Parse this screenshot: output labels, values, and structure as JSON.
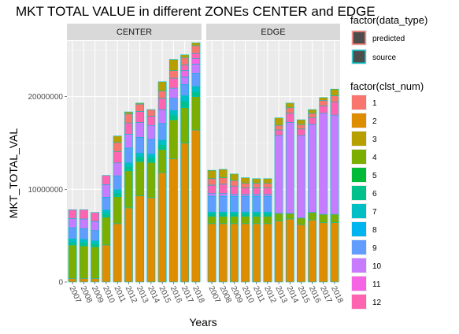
{
  "chart_data": {
    "type": "bar",
    "stacked": true,
    "faceted_by": "zone",
    "title": "MKT TOTAL VALUE in different ZONEs CENTER and EDGE",
    "xlabel": "Years",
    "ylabel": "MKT_TOTAL_VAL",
    "ylim": [
      0,
      26000000
    ],
    "y_ticks": [
      0,
      10000000,
      20000000
    ],
    "y_tick_labels": [
      "0",
      "10000000",
      "20000000"
    ],
    "grid": true,
    "legend_position": "right",
    "categories": [
      "2007",
      "2008",
      "2009",
      "2010",
      "2011",
      "2012",
      "2013",
      "2014",
      "2015",
      "2016",
      "2017",
      "2018"
    ],
    "panels": [
      {
        "name": "CENTER",
        "stacks": [
          [
            400000,
            3600000,
            0,
            300000,
            350000,
            0,
            1200000,
            1000000,
            0,
            950000,
            0,
            0
          ],
          [
            400000,
            3500000,
            0,
            350000,
            350000,
            0,
            1150000,
            1050000,
            0,
            1000000,
            0,
            0
          ],
          [
            400000,
            3400000,
            0,
            350000,
            300000,
            0,
            1100000,
            1000000,
            0,
            950000,
            0,
            0
          ],
          [
            4000000,
            3000000,
            0,
            400000,
            350000,
            0,
            1400000,
            1350000,
            0,
            1000000,
            0,
            0
          ],
          [
            6300000,
            2900000,
            0,
            400000,
            350000,
            0,
            1500000,
            1400000,
            0,
            1200000,
            1000000,
            700000
          ],
          [
            8000000,
            4000000,
            0,
            450000,
            400000,
            0,
            1600000,
            1500000,
            0,
            1200000,
            1000000,
            200000
          ],
          [
            9300000,
            3700000,
            0,
            500000,
            400000,
            0,
            1700000,
            1600000,
            0,
            1200000,
            800000,
            100000
          ],
          [
            9100000,
            3800000,
            0,
            500000,
            400000,
            0,
            1600000,
            1500000,
            0,
            1000000,
            700000,
            0
          ],
          [
            11800000,
            2500000,
            0,
            500000,
            500000,
            0,
            1800000,
            1500000,
            0,
            1200000,
            800000,
            1000000
          ],
          [
            13300000,
            4200000,
            0,
            500000,
            500000,
            0,
            1300000,
            1100000,
            0,
            1100000,
            800000,
            1200000
          ],
          [
            15000000,
            3800000,
            0,
            700000,
            600000,
            0,
            1200000,
            800000,
            700000,
            600000,
            800000,
            300000
          ],
          [
            16400000,
            3600000,
            0,
            500000,
            600000,
            0,
            1400000,
            1000000,
            600000,
            600000,
            800000,
            300000
          ]
        ]
      },
      {
        "name": "EDGE",
        "stacks": [
          [
            6300000,
            800000,
            0,
            300000,
            150000,
            0,
            1700000,
            300000,
            0,
            900000,
            700000,
            900000
          ],
          [
            6300000,
            800000,
            0,
            300000,
            150000,
            0,
            1700000,
            300000,
            0,
            1000000,
            700000,
            900000
          ],
          [
            6300000,
            800000,
            0,
            300000,
            150000,
            0,
            1700000,
            200000,
            0,
            900000,
            600000,
            700000
          ],
          [
            6300000,
            800000,
            0,
            300000,
            150000,
            0,
            1700000,
            200000,
            0,
            700000,
            500000,
            600000
          ],
          [
            6300000,
            800000,
            0,
            300000,
            150000,
            0,
            1700000,
            200000,
            0,
            700000,
            500000,
            500000
          ],
          [
            6300000,
            800000,
            0,
            300000,
            150000,
            0,
            1700000,
            200000,
            0,
            700000,
            500000,
            500000
          ],
          [
            6600000,
            800000,
            0,
            0,
            0,
            0,
            0,
            8400000,
            0,
            600000,
            500000,
            800000
          ],
          [
            6800000,
            600000,
            0,
            0,
            0,
            0,
            0,
            9800000,
            0,
            1000000,
            600000,
            500000
          ],
          [
            6200000,
            700000,
            0,
            0,
            0,
            0,
            0,
            8900000,
            0,
            700000,
            500000,
            500000
          ],
          [
            6700000,
            800000,
            0,
            0,
            0,
            0,
            0,
            9500000,
            0,
            700000,
            500000,
            400000
          ],
          [
            6400000,
            900000,
            0,
            0,
            0,
            0,
            0,
            10900000,
            0,
            800000,
            600000,
            300000
          ],
          [
            6400000,
            900000,
            0,
            0,
            0,
            0,
            0,
            10700000,
            0,
            1400000,
            700000,
            700000
          ]
        ]
      }
    ],
    "legend_groups": [
      {
        "title": "factor(data_type)",
        "entries": [
          {
            "label": "predicted",
            "border": "#F8766D"
          },
          {
            "label": "source",
            "border": "#00BFC4"
          }
        ]
      },
      {
        "title": "factor(clst_num)",
        "entries": [
          {
            "label": "1",
            "color": "#F8766D"
          },
          {
            "label": "2",
            "color": "#DE8C00"
          },
          {
            "label": "3",
            "color": "#B79F00"
          },
          {
            "label": "4",
            "color": "#7CAE00"
          },
          {
            "label": "5",
            "color": "#00BA38"
          },
          {
            "label": "6",
            "color": "#00C08B"
          },
          {
            "label": "7",
            "color": "#00BFC4"
          },
          {
            "label": "8",
            "color": "#00B4F0"
          },
          {
            "label": "9",
            "color": "#619CFF"
          },
          {
            "label": "10",
            "color": "#C77CFF"
          },
          {
            "label": "11",
            "color": "#F564E3"
          },
          {
            "label": "12",
            "color": "#FF64B0"
          }
        ]
      }
    ],
    "bar_stack_order": [
      "2",
      "4",
      "5",
      "6",
      "7",
      "8",
      "9",
      "10",
      "11",
      "12",
      "1",
      "3"
    ]
  }
}
